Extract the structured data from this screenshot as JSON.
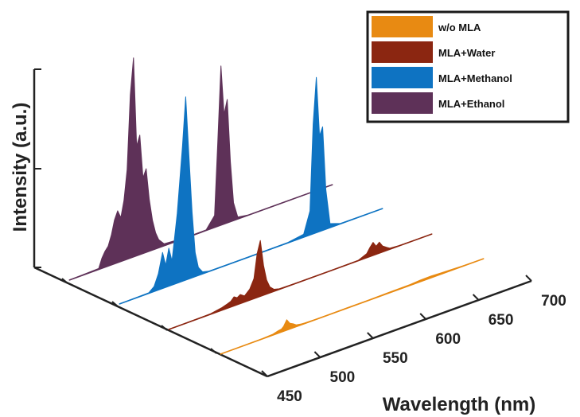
{
  "chart_data": {
    "type": "line",
    "subtype": "3d-waterfall-spectra",
    "xlabel": "Wavelength (nm)",
    "ylabel": "Intensity (a.u.)",
    "x_ticks": [
      "450",
      "500",
      "550",
      "600",
      "650",
      "700"
    ],
    "xlim": [
      450,
      700
    ],
    "legend": {
      "position": "top-right"
    },
    "series": [
      {
        "name": "w/o MLA",
        "color": "#E88A12",
        "x": [
          450,
          490,
          500,
          505,
          508,
          510,
          513,
          516,
          519,
          522,
          526,
          530,
          540,
          555,
          570,
          590,
          610,
          630,
          640,
          650,
          660,
          670,
          680,
          700
        ],
        "y": [
          0,
          0.2,
          0.5,
          1.2,
          1.5,
          2.4,
          5.2,
          2.8,
          2.0,
          0.9,
          0.5,
          0.3,
          0.2,
          0.15,
          0.2,
          0.2,
          0.3,
          0.4,
          0.8,
          0.9,
          0.6,
          0.4,
          0.2,
          0
        ]
      },
      {
        "name": "MLA+Water",
        "color": "#8B2611",
        "x": [
          450,
          490,
          500,
          505,
          509,
          512,
          515,
          518,
          522,
          527,
          531,
          534,
          537,
          540,
          543,
          546,
          550,
          555,
          570,
          600,
          630,
          638,
          641,
          644,
          647,
          650,
          653,
          657,
          660,
          668,
          680,
          700
        ],
        "y": [
          0,
          0.3,
          1.2,
          2.0,
          2.8,
          4.5,
          3.5,
          4.5,
          3.0,
          5.5,
          10,
          22,
          28,
          15,
          7,
          3,
          1,
          0.3,
          0.1,
          0.1,
          0.2,
          2.0,
          4.5,
          6.5,
          4.0,
          5.5,
          3.0,
          1.5,
          0.5,
          0.2,
          0.1,
          0
        ]
      },
      {
        "name": "MLA+Methanol",
        "color": "#0E73C2",
        "x": [
          450,
          478,
          483,
          487,
          491,
          494,
          497,
          500,
          505,
          510,
          513,
          516,
          519,
          522,
          525,
          529,
          535,
          560,
          610,
          625,
          631,
          634,
          637,
          640,
          643,
          646,
          650,
          660,
          700
        ],
        "y": [
          0,
          0.3,
          2.5,
          8,
          18,
          11,
          19,
          12,
          35,
          68,
          92,
          62,
          33,
          12,
          4,
          1,
          0.2,
          0.1,
          0.2,
          1.5,
          12,
          55,
          78,
          48,
          52,
          20,
          2,
          0.2,
          0
        ]
      },
      {
        "name": "MLA+Ethanol",
        "color": "#5E3158",
        "x": [
          450,
          478,
          481,
          484,
          487,
          490,
          493,
          496,
          499,
          502,
          505,
          508,
          511,
          514,
          517,
          520,
          523,
          526,
          529,
          532,
          535,
          540,
          560,
          580,
          588,
          591,
          594,
          597,
          600,
          603,
          606,
          610,
          620,
          700
        ],
        "y": [
          0,
          0.5,
          5,
          8,
          10,
          15,
          22,
          26,
          22,
          30,
          45,
          82,
          100,
          55,
          60,
          38,
          42,
          26,
          15,
          8,
          4,
          1,
          0.2,
          0.3,
          6,
          42,
          80,
          55,
          62,
          30,
          9,
          1,
          0.1,
          0
        ]
      }
    ]
  }
}
